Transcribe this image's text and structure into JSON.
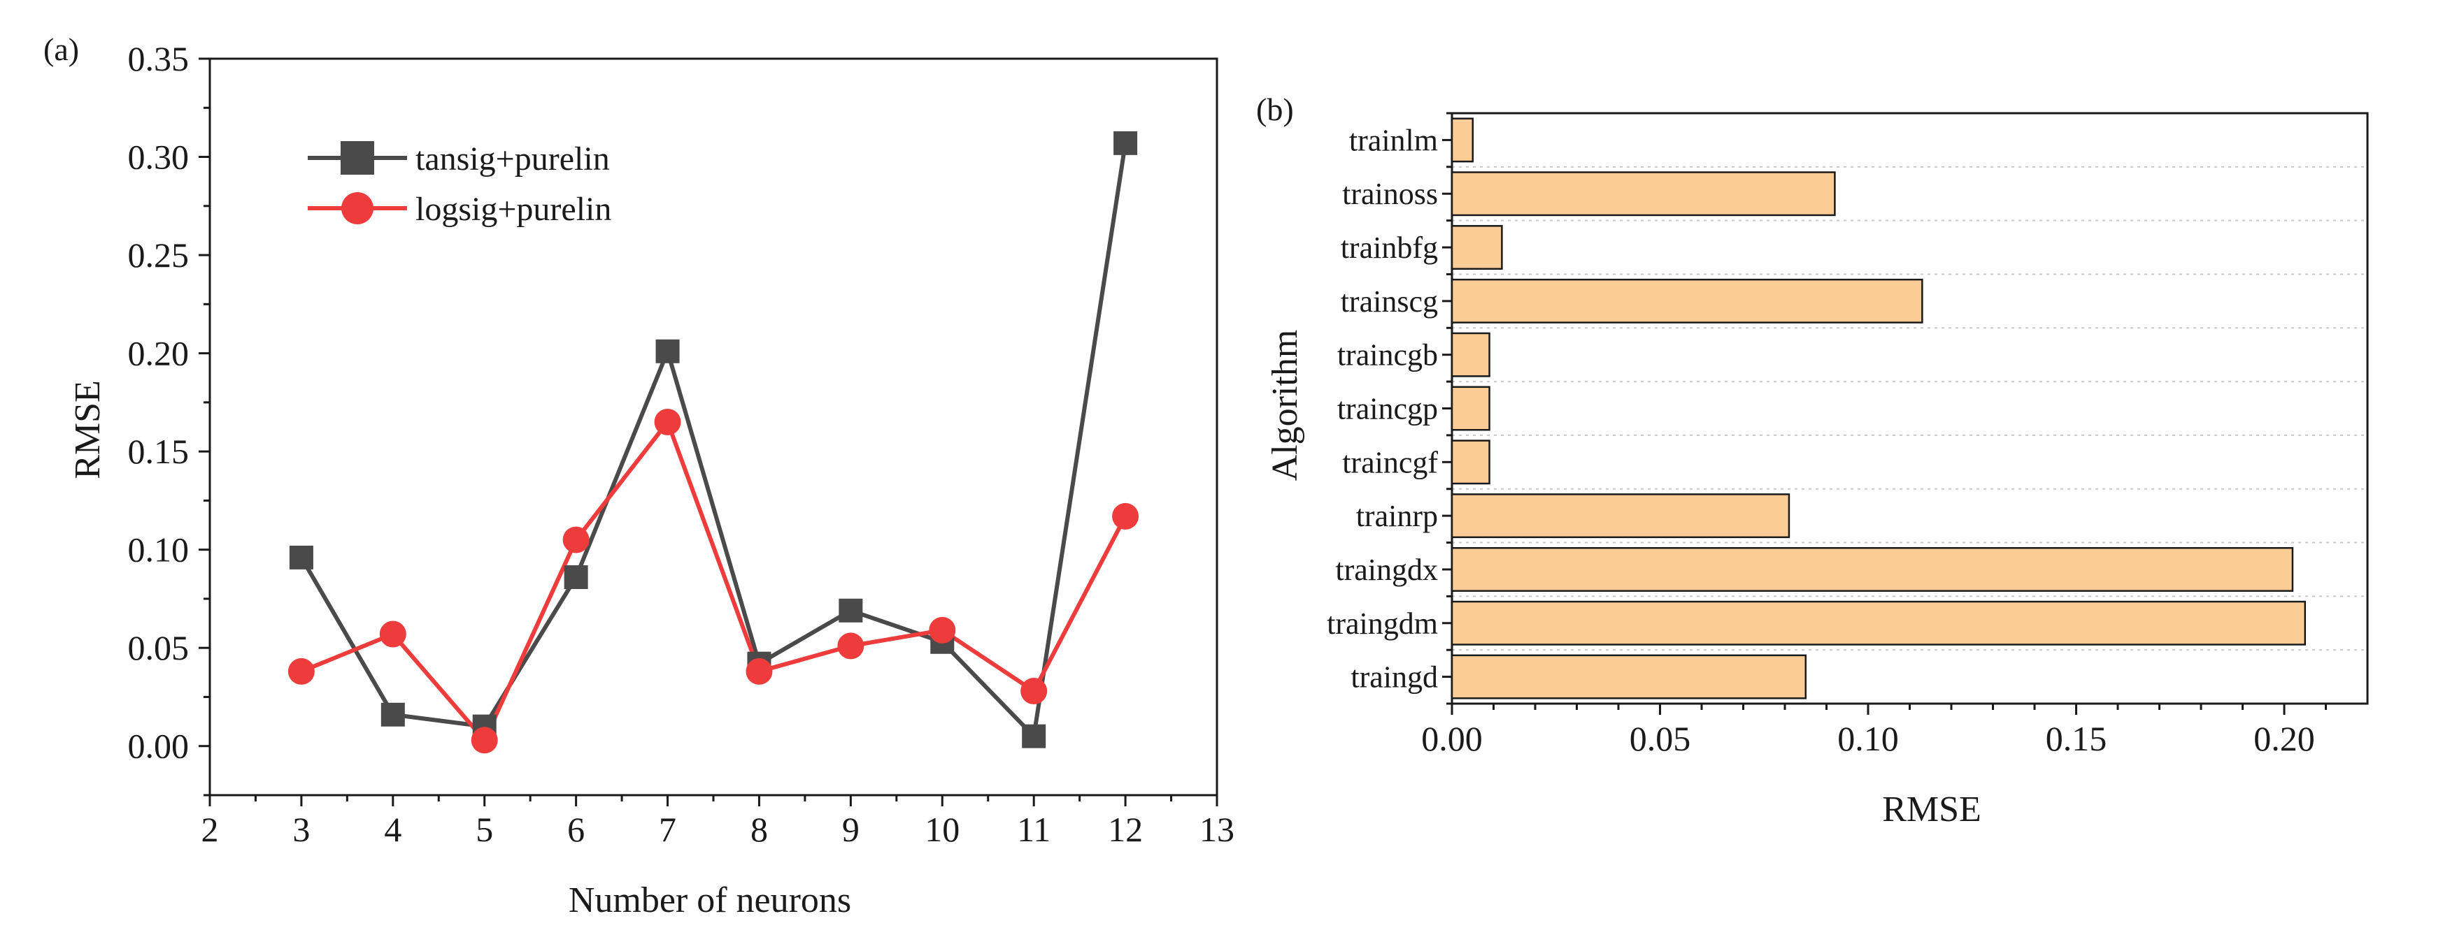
{
  "chart_data": [
    {
      "type": "line",
      "panel_label": "(a)",
      "xlabel": "Number of neurons",
      "ylabel": "RMSE",
      "xlim": [
        2,
        13
      ],
      "ylim": [
        -0.025,
        0.35
      ],
      "xticks": [
        2,
        3,
        4,
        5,
        6,
        7,
        8,
        9,
        10,
        11,
        12,
        13
      ],
      "yticks": [
        "0.00",
        "0.05",
        "0.10",
        "0.15",
        "0.20",
        "0.25",
        "0.30",
        "0.35"
      ],
      "x": [
        3,
        4,
        5,
        6,
        7,
        8,
        9,
        10,
        11,
        12
      ],
      "legend_position": "top-left",
      "series": [
        {
          "name": "tansig+purelin",
          "marker": "square",
          "color": "#4a4a4a",
          "values": [
            0.096,
            0.016,
            0.01,
            0.086,
            0.201,
            0.042,
            0.069,
            0.053,
            0.005,
            0.307
          ]
        },
        {
          "name": "logsig+purelin",
          "marker": "circle",
          "color": "#ee3b3b",
          "values": [
            0.038,
            0.057,
            0.003,
            0.105,
            0.165,
            0.038,
            0.051,
            0.059,
            0.028,
            0.117
          ]
        }
      ]
    },
    {
      "type": "bar",
      "orientation": "horizontal",
      "panel_label": "(b)",
      "xlabel": "RMSE",
      "ylabel": "Algorithm",
      "xlim": [
        0,
        0.22
      ],
      "xticks": [
        "0.00",
        "0.05",
        "0.10",
        "0.15",
        "0.20"
      ],
      "bar_color": "#fccc96",
      "categories": [
        "trainlm",
        "trainoss",
        "trainbfg",
        "trainscg",
        "traincgb",
        "traincgp",
        "traincgf",
        "trainrp",
        "traingdx",
        "traingdm",
        "traingd"
      ],
      "values": [
        0.005,
        0.092,
        0.012,
        0.113,
        0.009,
        0.009,
        0.009,
        0.081,
        0.202,
        0.205,
        0.085
      ]
    }
  ]
}
